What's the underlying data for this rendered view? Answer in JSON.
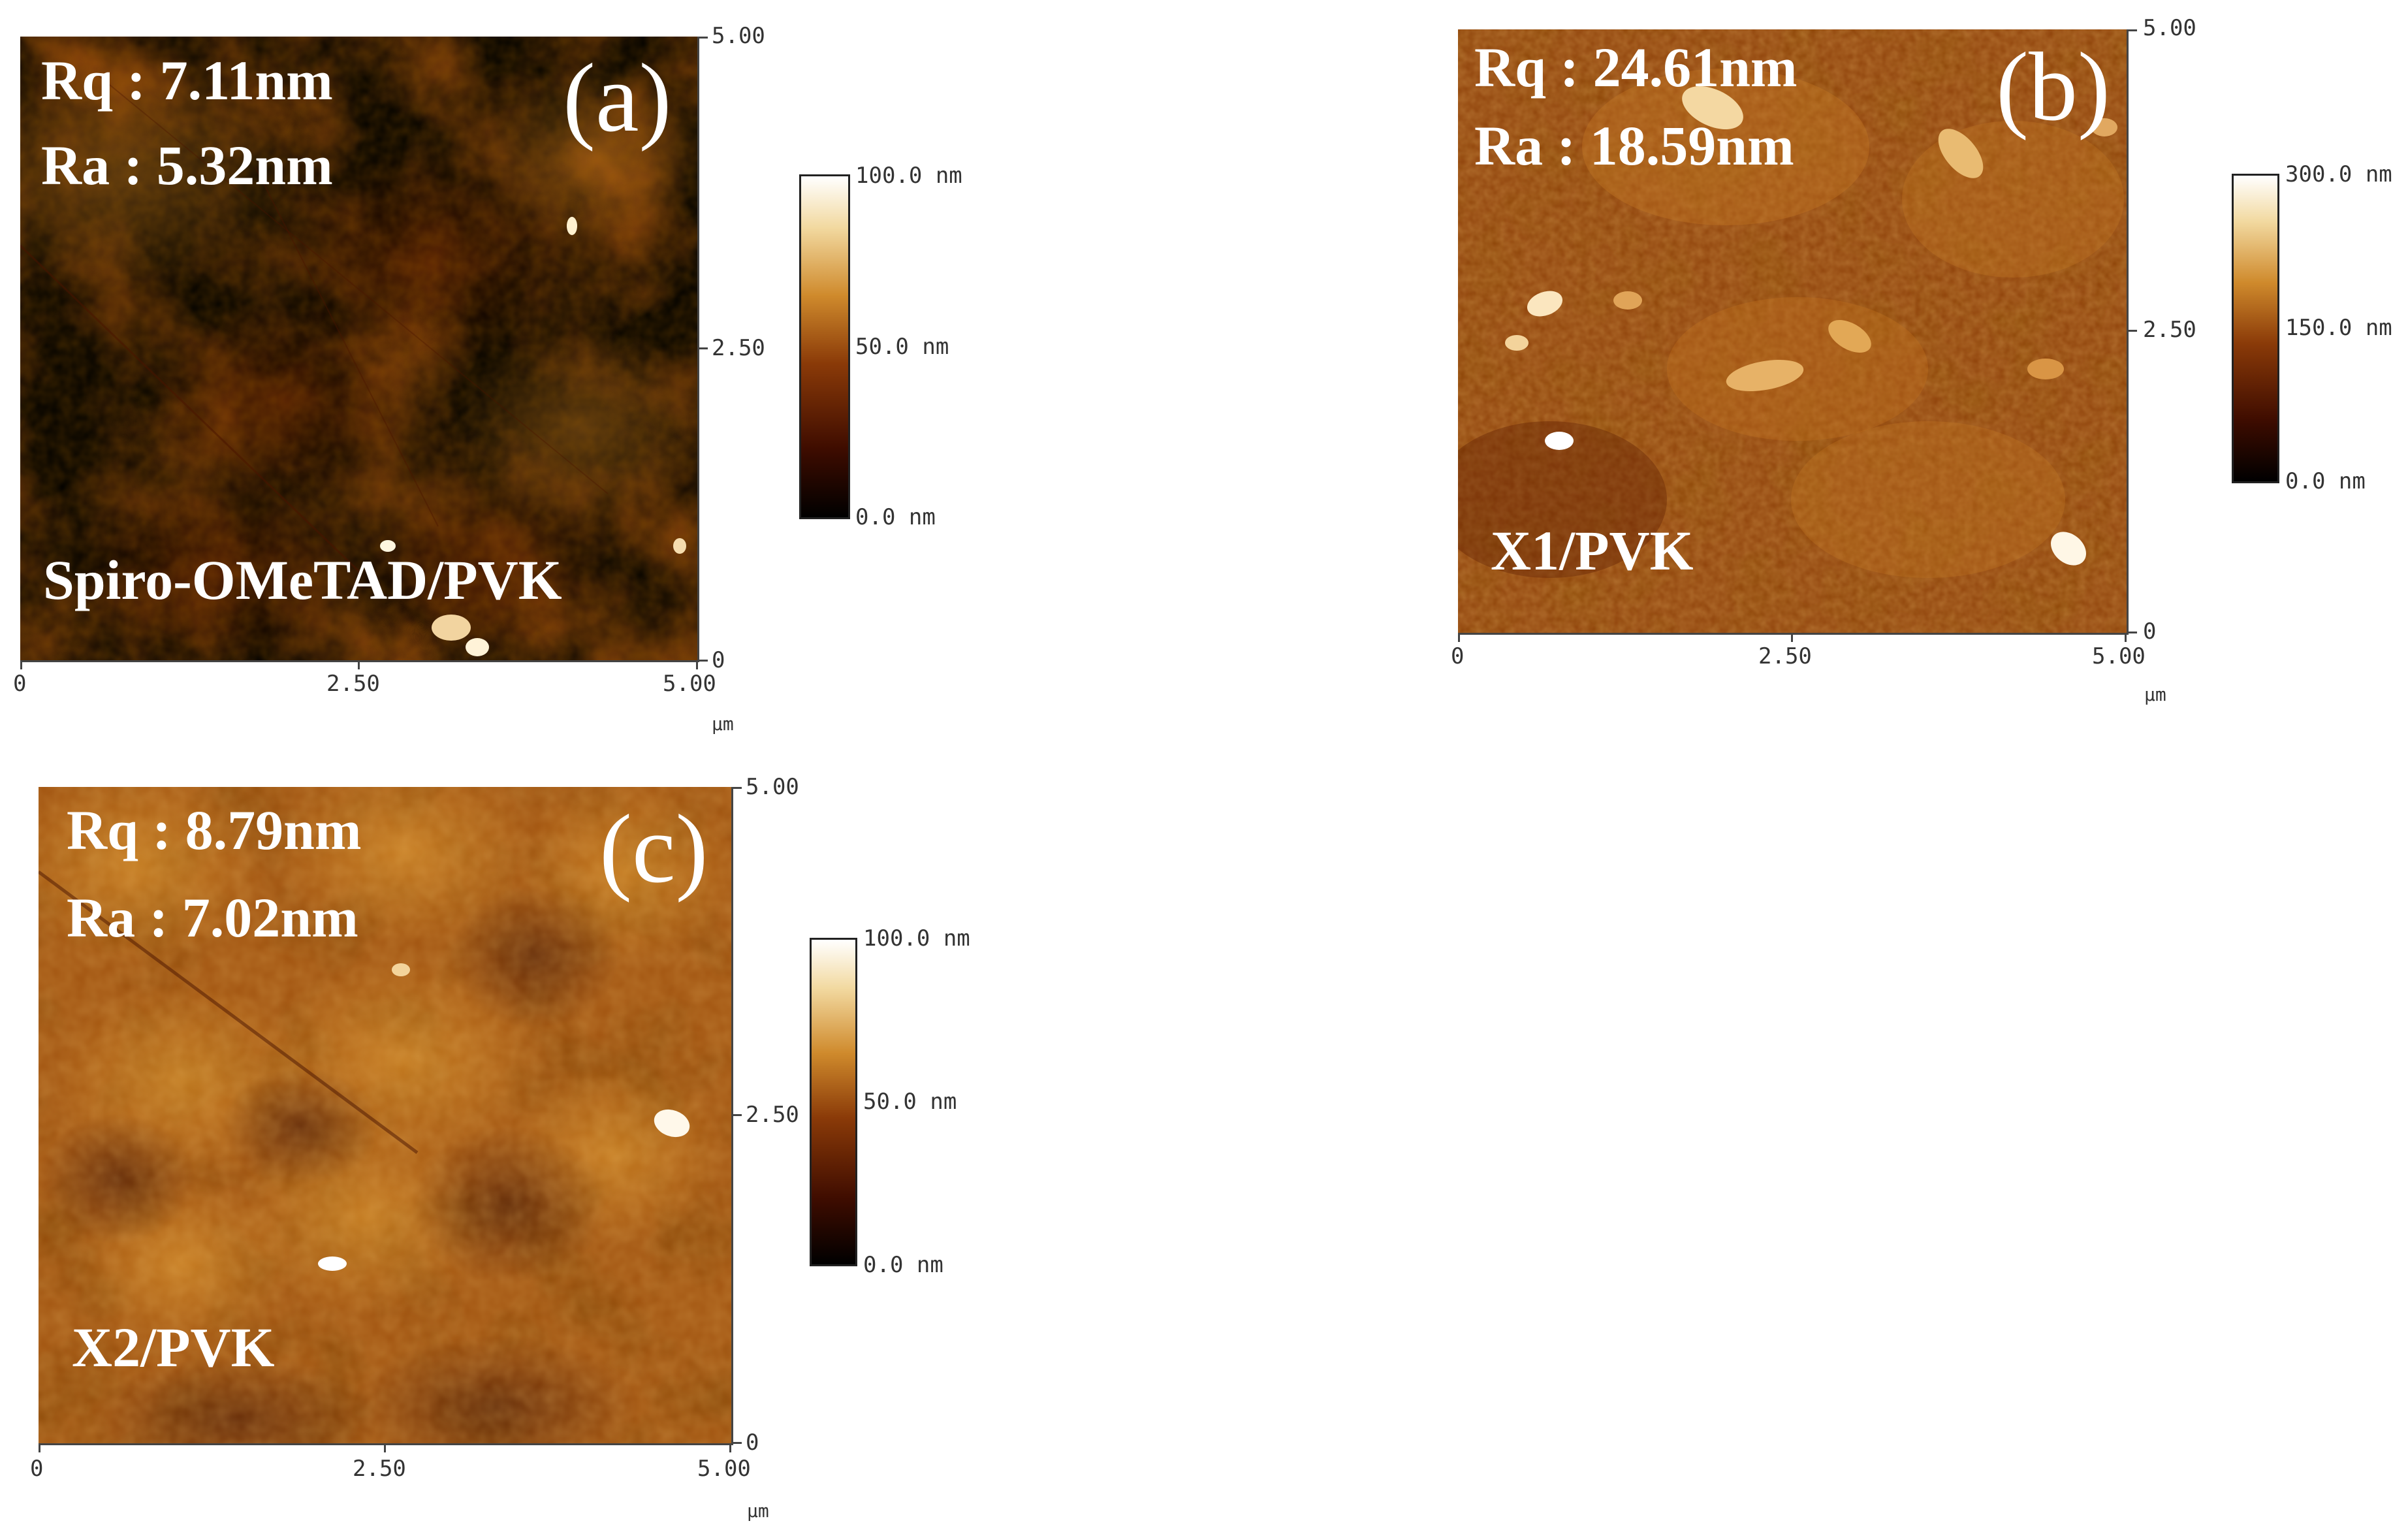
{
  "panels": {
    "a": {
      "letter": "(a)",
      "rq": "Rq : 7.11nm",
      "ra": "Ra : 5.32nm",
      "sample": "Spiro-OMeTAD/PVK",
      "x_ticks": [
        "0",
        "2.50",
        "5.00"
      ],
      "y_ticks": [
        "5.00",
        "2.50",
        "0"
      ],
      "unit": "µm",
      "colorbar": {
        "max": "100.0 nm",
        "mid": "50.0 nm",
        "min": "0.0 nm"
      }
    },
    "b": {
      "letter": "(b)",
      "rq": "Rq : 24.61nm",
      "ra": "Ra : 18.59nm",
      "sample": "X1/PVK",
      "x_ticks": [
        "0",
        "2.50",
        "5.00"
      ],
      "y_ticks": [
        "5.00",
        "2.50",
        "0"
      ],
      "unit": "µm",
      "colorbar": {
        "max": "300.0 nm",
        "mid": "150.0 nm",
        "min": "0.0 nm"
      }
    },
    "c": {
      "letter": "(c)",
      "rq": "Rq : 8.79nm",
      "ra": "Ra : 7.02nm",
      "sample": "X2/PVK",
      "x_ticks": [
        "0",
        "2.50",
        "5.00"
      ],
      "y_ticks": [
        "5.00",
        "2.50",
        "0"
      ],
      "unit": "µm",
      "colorbar": {
        "max": "100.0 nm",
        "mid": "50.0 nm",
        "min": "0.0 nm"
      }
    }
  },
  "colors": {
    "afm_dark": "#3a0d00",
    "afm_mid": "#9a4a0a",
    "afm_light": "#d9902a",
    "afm_highlight": "#fff3d8"
  }
}
